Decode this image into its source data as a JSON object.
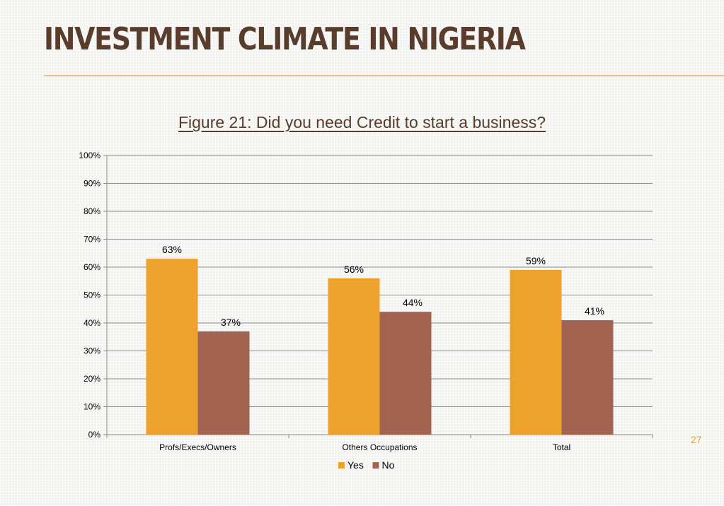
{
  "slide": {
    "title": "INVESTMENT CLIMATE IN NIGERIA",
    "page_number": "27"
  },
  "colors": {
    "title": "#5a3c2c",
    "accent_rule": "#f2c27a",
    "yes": "#eda22e",
    "no": "#a26450",
    "gridline": "#8a8a8a",
    "page_number": "#e8a33a"
  },
  "chart_data": {
    "type": "bar",
    "title": "Figure 21: Did you need Credit to start a business?",
    "categories": [
      "Profs/Execs/Owners",
      "Others Occupations",
      "Total"
    ],
    "series": [
      {
        "name": "Yes",
        "values": [
          63,
          56,
          59
        ],
        "labels": [
          "63%",
          "56%",
          "59%"
        ],
        "color": "#eda22e"
      },
      {
        "name": "No",
        "values": [
          37,
          44,
          41
        ],
        "labels": [
          "37%",
          "44%",
          "41%"
        ],
        "color": "#a26450"
      }
    ],
    "ylim": [
      0,
      100
    ],
    "yticks": [
      "0%",
      "10%",
      "20%",
      "30%",
      "40%",
      "50%",
      "60%",
      "70%",
      "80%",
      "90%",
      "100%"
    ],
    "xlabel": "",
    "ylabel": "",
    "grid": true,
    "legend": "bottom"
  }
}
